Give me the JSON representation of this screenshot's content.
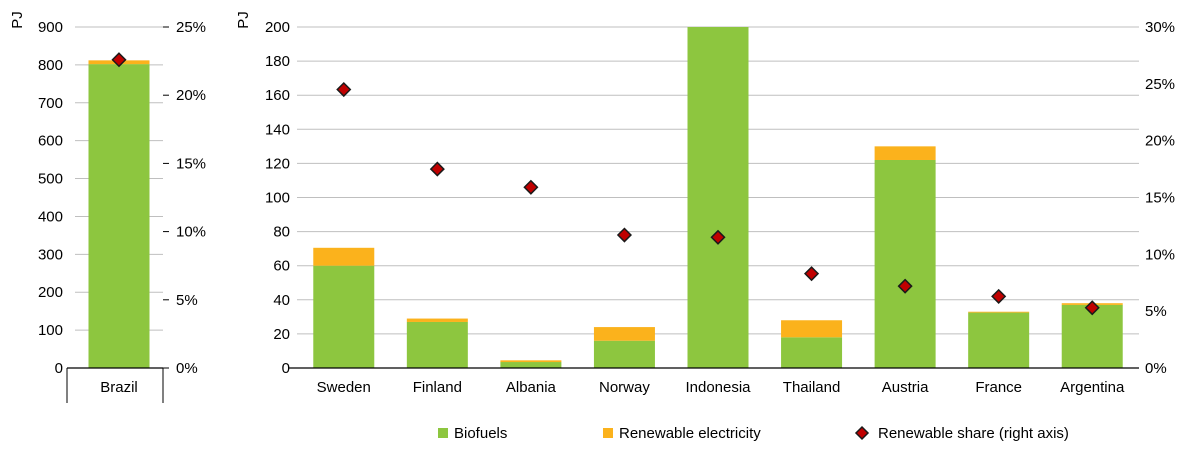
{
  "chart_data": [
    {
      "type": "bar",
      "stacked": true,
      "categories": [
        "Brazil"
      ],
      "series": [
        {
          "name": "Biofuels",
          "values": [
            802
          ],
          "color": "#8dc63f",
          "axis": "left"
        },
        {
          "name": "Renewable electricity",
          "values": [
            10
          ],
          "color": "#fbb21c",
          "axis": "left"
        },
        {
          "name": "Renewable share (right axis)",
          "values": [
            0.226
          ],
          "color": "#c00000",
          "marker": "diamond",
          "axis": "right"
        }
      ],
      "ylabel": "PJ",
      "ylim": [
        0,
        900
      ],
      "yticks": [
        0,
        100,
        200,
        300,
        400,
        500,
        600,
        700,
        800,
        900
      ],
      "y2lim": [
        0,
        0.25
      ],
      "y2ticks": [
        0,
        0.05,
        0.1,
        0.15,
        0.2,
        0.25
      ],
      "y2tick_labels": [
        "0%",
        "5%",
        "10%",
        "15%",
        "20%",
        "25%"
      ],
      "grid": true
    },
    {
      "type": "bar",
      "stacked": true,
      "categories": [
        "Sweden",
        "Finland",
        "Albania",
        "Norway",
        "Indonesia",
        "Thailand",
        "Austria",
        "France",
        "Argentina"
      ],
      "series": [
        {
          "name": "Biofuels",
          "values": [
            60,
            27,
            3.5,
            16,
            200,
            18,
            122,
            32.5,
            37
          ],
          "color": "#8dc63f",
          "axis": "left"
        },
        {
          "name": "Renewable electricity",
          "values": [
            10.5,
            2,
            1,
            8,
            0,
            10,
            8,
            0.5,
            1
          ],
          "color": "#fbb21c",
          "axis": "left"
        },
        {
          "name": "Renewable share (right axis)",
          "values": [
            0.245,
            0.175,
            0.159,
            0.117,
            0.115,
            0.083,
            0.072,
            0.063,
            0.053
          ],
          "color": "#c00000",
          "marker": "diamond",
          "axis": "right"
        }
      ],
      "ylabel": "PJ",
      "ylim": [
        0,
        200
      ],
      "yticks": [
        0,
        20,
        40,
        60,
        80,
        100,
        120,
        140,
        160,
        180,
        200
      ],
      "y2lim": [
        0,
        0.3
      ],
      "y2ticks": [
        0,
        0.05,
        0.1,
        0.15,
        0.2,
        0.25,
        0.3
      ],
      "y2tick_labels": [
        "0%",
        "5%",
        "10%",
        "15%",
        "20%",
        "25%",
        "30%"
      ],
      "grid": true
    }
  ],
  "legend": {
    "placement": "bottom",
    "items": [
      {
        "label": "Biofuels",
        "color": "#8dc63f",
        "marker": "square"
      },
      {
        "label": "Renewable electricity",
        "color": "#fbb21c",
        "marker": "square"
      },
      {
        "label": "Renewable share (right axis)",
        "color": "#c00000",
        "marker": "diamond"
      }
    ]
  },
  "style": {
    "grid_color": "#bfbfbf",
    "axis_color": "#000000",
    "marker_outline": "#1a1a1a"
  }
}
